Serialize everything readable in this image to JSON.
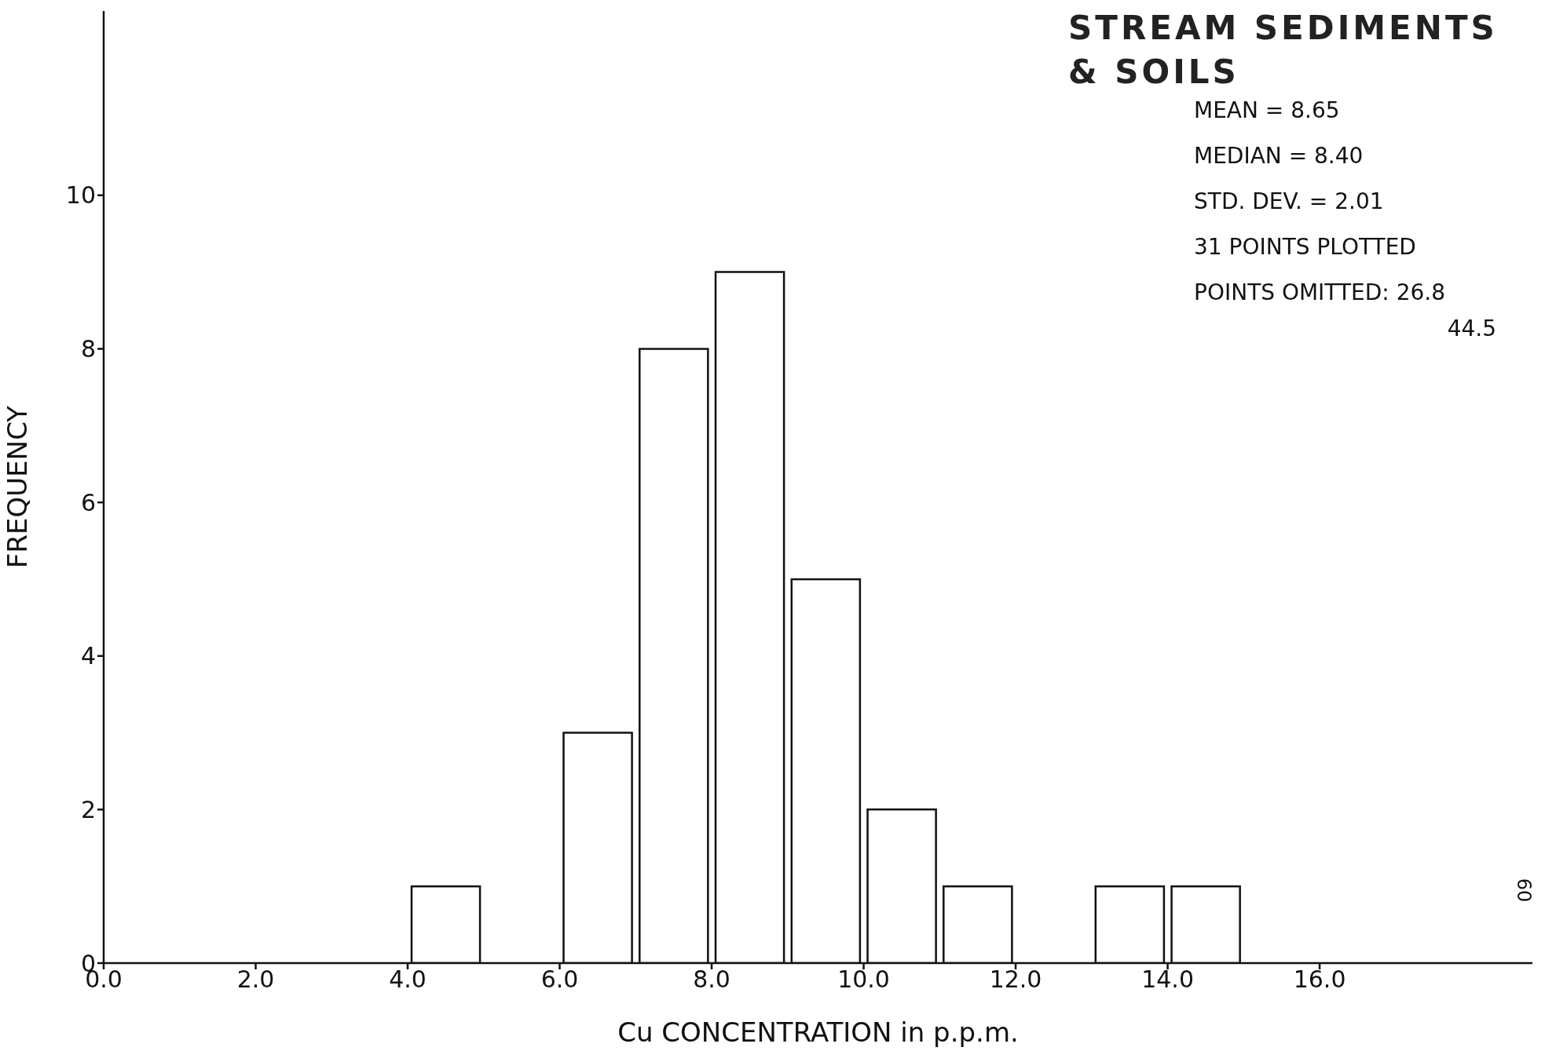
{
  "chart_data": {
    "type": "histogram",
    "title": "STREAM SEDIMENTS & SOILS",
    "xlabel": "Cu CONCENTRATION in p.p.m.",
    "ylabel": "FREQUENCY",
    "bins": [
      4,
      5,
      6,
      7,
      8,
      9,
      10,
      11,
      12,
      13,
      14,
      15
    ],
    "values": [
      1,
      0,
      3,
      8,
      9,
      5,
      2,
      1,
      0,
      1,
      1
    ],
    "color": "#ffffff",
    "xlim": [
      0,
      18.8
    ],
    "xticks": [
      {
        "value": 0,
        "label": "0.0"
      },
      {
        "value": 2,
        "label": "2.0"
      },
      {
        "value": 4,
        "label": "4.0"
      },
      {
        "value": 6,
        "label": "6.0"
      },
      {
        "value": 8,
        "label": "8.0"
      },
      {
        "value": 10,
        "label": "10.0"
      },
      {
        "value": 12,
        "label": "12.0"
      },
      {
        "value": 14,
        "label": "14.0"
      },
      {
        "value": 16,
        "label": "16.0"
      }
    ],
    "ylim": [
      0,
      12.4
    ],
    "yticks": [
      0,
      2,
      4,
      6,
      8,
      10
    ],
    "grid": false,
    "legend": false,
    "annotations": [
      "MEAN = 8.65",
      "MEDIAN = 8.40",
      "STD. DEV. = 2.01",
      "31 POINTS PLOTTED",
      "POINTS OMITTED: 26.8",
      "44.5",
      "60"
    ]
  }
}
